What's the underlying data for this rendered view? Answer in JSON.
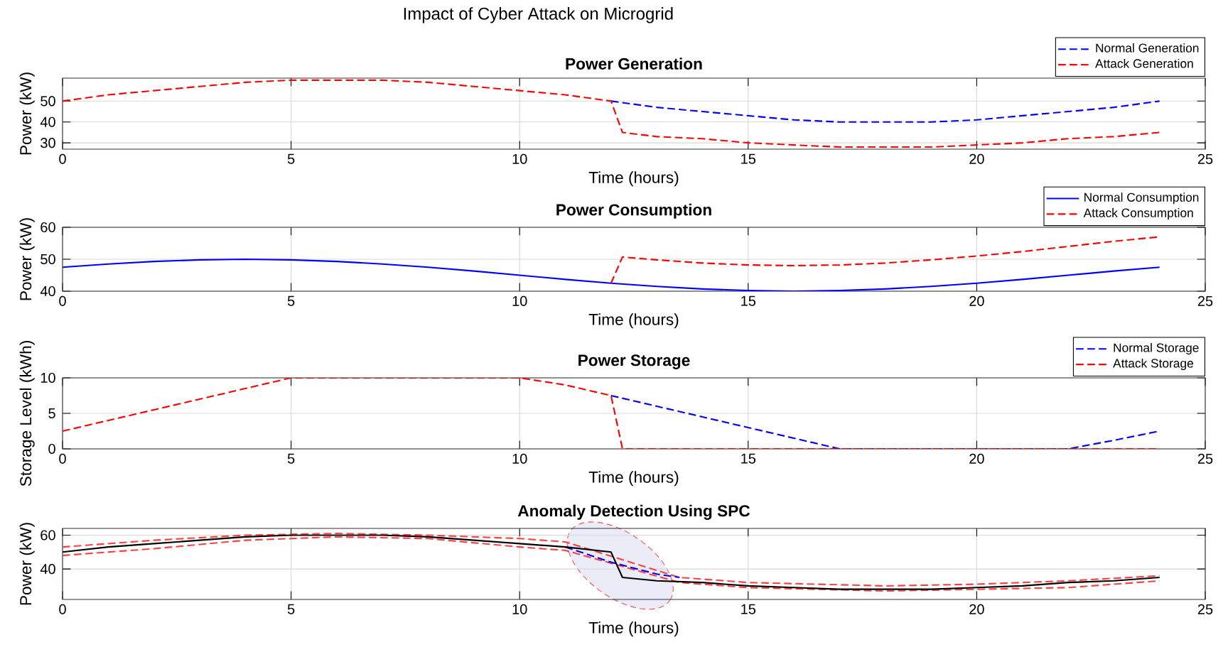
{
  "chart_data": [
    {
      "type": "line",
      "title": "Power Generation",
      "xlabel": "Time (hours)",
      "ylabel": "Power (kW)",
      "annotations": [
        "Impact of Cyber Attack on Microgrid"
      ],
      "xlim": [
        0,
        25
      ],
      "xticks": [
        0,
        5,
        10,
        15,
        20,
        25
      ],
      "ylim": [
        27,
        61
      ],
      "yticks": [
        30,
        40,
        50
      ],
      "grid": true,
      "legend": "top right",
      "series": [
        {
          "name": "Normal Generation",
          "color": "#0000ff",
          "line_style": "dashed",
          "x": [
            12,
            13,
            14,
            15,
            16,
            17,
            18,
            19,
            20,
            21,
            22,
            23,
            24
          ],
          "values": [
            50,
            47,
            45,
            43,
            41,
            40,
            40,
            40,
            41,
            43,
            45,
            47,
            50
          ]
        },
        {
          "name": "Attack Generation",
          "color": "#ff0000",
          "line_style": "dashed",
          "x": [
            0,
            1,
            2,
            3,
            4,
            5,
            6,
            7,
            8,
            9,
            10,
            11,
            12,
            12.25,
            13,
            14,
            15,
            16,
            17,
            18,
            19,
            20,
            21,
            22,
            23,
            24
          ],
          "values": [
            50,
            53,
            55,
            57,
            59,
            60,
            60,
            60,
            59,
            57,
            55,
            53,
            50,
            35,
            33,
            32,
            30,
            29,
            28,
            28,
            28,
            29,
            30,
            32,
            33,
            35
          ]
        }
      ]
    },
    {
      "type": "line",
      "title": "Power Consumption",
      "xlabel": "Time (hours)",
      "ylabel": "Power (kW)",
      "xlim": [
        0,
        25
      ],
      "xticks": [
        0,
        5,
        10,
        15,
        20,
        25
      ],
      "ylim": [
        40,
        60
      ],
      "yticks": [
        40,
        50,
        60
      ],
      "grid": true,
      "legend": "top right",
      "series": [
        {
          "name": "Normal Consumption",
          "color": "#0000ff",
          "line_style": "solid",
          "x": [
            0,
            1,
            2,
            3,
            4,
            5,
            6,
            7,
            8,
            9,
            10,
            11,
            12,
            13,
            14,
            15,
            16,
            17,
            18,
            19,
            20,
            21,
            22,
            23,
            24
          ],
          "values": [
            47.5,
            48.5,
            49.3,
            49.8,
            50,
            49.8,
            49.3,
            48.5,
            47.5,
            46.3,
            45,
            43.7,
            42.5,
            41.5,
            40.7,
            40.2,
            40,
            40.2,
            40.7,
            41.5,
            42.5,
            43.7,
            45,
            46.3,
            47.5
          ]
        },
        {
          "name": "Attack Consumption",
          "color": "#ff0000",
          "line_style": "dashed",
          "x": [
            12,
            12.25,
            13,
            14,
            15,
            16,
            17,
            18,
            19,
            20,
            21,
            22,
            23,
            24
          ],
          "values": [
            42.5,
            50.7,
            49.8,
            48.8,
            48.2,
            48,
            48.2,
            48.8,
            49.8,
            51,
            52.4,
            54,
            55.6,
            57
          ]
        }
      ]
    },
    {
      "type": "line",
      "title": "Power Storage",
      "xlabel": "Time (hours)",
      "ylabel": "Storage Level (kWh)",
      "xlim": [
        0,
        25
      ],
      "xticks": [
        0,
        5,
        10,
        15,
        20,
        25
      ],
      "ylim": [
        0,
        10
      ],
      "yticks": [
        0,
        5,
        10
      ],
      "grid": true,
      "legend": "top right",
      "series": [
        {
          "name": "Normal Storage",
          "color": "#0000ff",
          "line_style": "dashed",
          "x": [
            12,
            13,
            14,
            15,
            16,
            17,
            22,
            23,
            24
          ],
          "values": [
            7.5,
            6,
            4.5,
            3,
            1.5,
            0,
            0,
            1.2,
            2.5
          ]
        },
        {
          "name": "Attack Storage",
          "color": "#ff0000",
          "line_style": "dashed",
          "x": [
            0,
            1,
            2,
            3,
            4,
            5,
            10,
            11,
            12,
            12.25,
            24
          ],
          "values": [
            2.5,
            4,
            5.5,
            7,
            8.5,
            10,
            10,
            9,
            7.5,
            0,
            0
          ]
        }
      ]
    },
    {
      "type": "line",
      "title": "Anomaly Detection Using SPC",
      "xlabel": "Time (hours)",
      "ylabel": "Power (kW)",
      "xlim": [
        0,
        25
      ],
      "xticks": [
        0,
        5,
        10,
        15,
        20,
        25
      ],
      "ylim": [
        22,
        64
      ],
      "yticks": [
        40,
        60
      ],
      "grid": true,
      "series": [
        {
          "color": "#ff4040",
          "line_style": "dashed",
          "x": [
            0,
            2,
            4,
            6,
            8,
            10,
            11,
            13.5,
            15,
            18,
            20,
            22,
            24
          ],
          "values": [
            53,
            57,
            60,
            61,
            60,
            58,
            56,
            35,
            32,
            30,
            31,
            33,
            36
          ]
        },
        {
          "color": "#ff4040",
          "line_style": "dashed",
          "x": [
            0,
            2,
            4,
            6,
            8,
            10,
            11,
            13.5,
            15,
            18,
            20,
            22,
            24
          ],
          "values": [
            48,
            52,
            57,
            59,
            58,
            53,
            51,
            32,
            29,
            27,
            28,
            29,
            33
          ]
        },
        {
          "color": "#0000ff",
          "line_style": "dashed",
          "x": [
            11,
            12,
            13,
            13.5
          ],
          "values": [
            53,
            44,
            37,
            35
          ]
        },
        {
          "color": "#000000",
          "line_style": "solid",
          "x": [
            0,
            1,
            2,
            3,
            4,
            5,
            6,
            7,
            8,
            9,
            10,
            11,
            12,
            12.25,
            13,
            14,
            15,
            16,
            17,
            18,
            19,
            20,
            21,
            22,
            23,
            24
          ],
          "values": [
            50,
            53,
            55,
            57,
            59,
            60,
            60,
            60,
            59,
            57,
            55,
            53,
            50,
            35,
            33,
            32,
            30,
            29,
            28,
            28,
            28,
            29,
            30,
            32,
            33,
            35
          ]
        }
      ]
    }
  ]
}
